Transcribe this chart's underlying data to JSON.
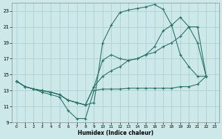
{
  "xlabel": "Humidex (Indice chaleur)",
  "bg_color": "#cce8e8",
  "grid_color": "#aacfcf",
  "line_color": "#2a7068",
  "xlim": [
    -0.5,
    23.5
  ],
  "ylim": [
    9,
    24
  ],
  "xticks": [
    0,
    1,
    2,
    3,
    4,
    5,
    6,
    7,
    8,
    9,
    10,
    11,
    12,
    13,
    14,
    15,
    16,
    17,
    18,
    19,
    20,
    21,
    22,
    23
  ],
  "yticks": [
    9,
    11,
    13,
    15,
    17,
    19,
    21,
    23
  ],
  "line1_x": [
    0,
    1,
    2,
    3,
    4,
    5,
    6,
    7,
    8,
    9,
    10,
    11,
    12,
    13,
    14,
    15,
    16,
    17,
    18,
    19,
    20,
    21,
    22
  ],
  "line1_y": [
    14.2,
    13.5,
    13.2,
    12.8,
    12.5,
    12.2,
    10.5,
    9.5,
    9.5,
    13.0,
    13.2,
    13.2,
    13.2,
    13.3,
    13.3,
    13.3,
    13.3,
    13.3,
    13.3,
    13.5,
    13.5,
    13.8,
    14.8
  ],
  "line2_x": [
    0,
    1,
    2,
    3,
    4,
    5,
    6,
    7,
    8,
    9,
    10,
    11,
    12,
    13,
    14,
    15,
    16,
    17,
    18,
    19,
    20,
    21,
    22
  ],
  "line2_y": [
    14.2,
    13.5,
    13.2,
    13.0,
    12.8,
    12.5,
    11.8,
    11.5,
    11.2,
    11.5,
    19.0,
    21.2,
    22.8,
    23.1,
    23.3,
    23.5,
    23.8,
    23.2,
    21.2,
    17.5,
    16.0,
    14.8,
    14.8
  ],
  "line3_x": [
    0,
    1,
    2,
    3,
    4,
    5,
    6,
    7,
    8,
    9,
    10,
    11,
    12,
    13,
    14,
    15,
    16,
    17,
    18,
    19,
    20,
    21,
    22
  ],
  "line3_y": [
    14.2,
    13.5,
    13.2,
    13.0,
    12.8,
    12.5,
    11.8,
    11.5,
    11.2,
    13.5,
    16.8,
    17.5,
    17.0,
    16.8,
    17.0,
    17.5,
    18.5,
    20.5,
    21.2,
    22.2,
    21.0,
    19.0,
    14.8
  ],
  "line4_x": [
    0,
    1,
    2,
    3,
    4,
    5,
    6,
    7,
    8,
    9,
    10,
    11,
    12,
    13,
    14,
    15,
    16,
    17,
    18,
    19,
    20,
    21,
    22
  ],
  "line4_y": [
    14.2,
    13.5,
    13.2,
    13.0,
    12.8,
    12.5,
    11.8,
    11.5,
    11.2,
    13.5,
    14.8,
    15.5,
    16.0,
    16.8,
    17.0,
    17.5,
    17.8,
    18.5,
    19.0,
    19.8,
    21.0,
    21.0,
    14.8
  ]
}
